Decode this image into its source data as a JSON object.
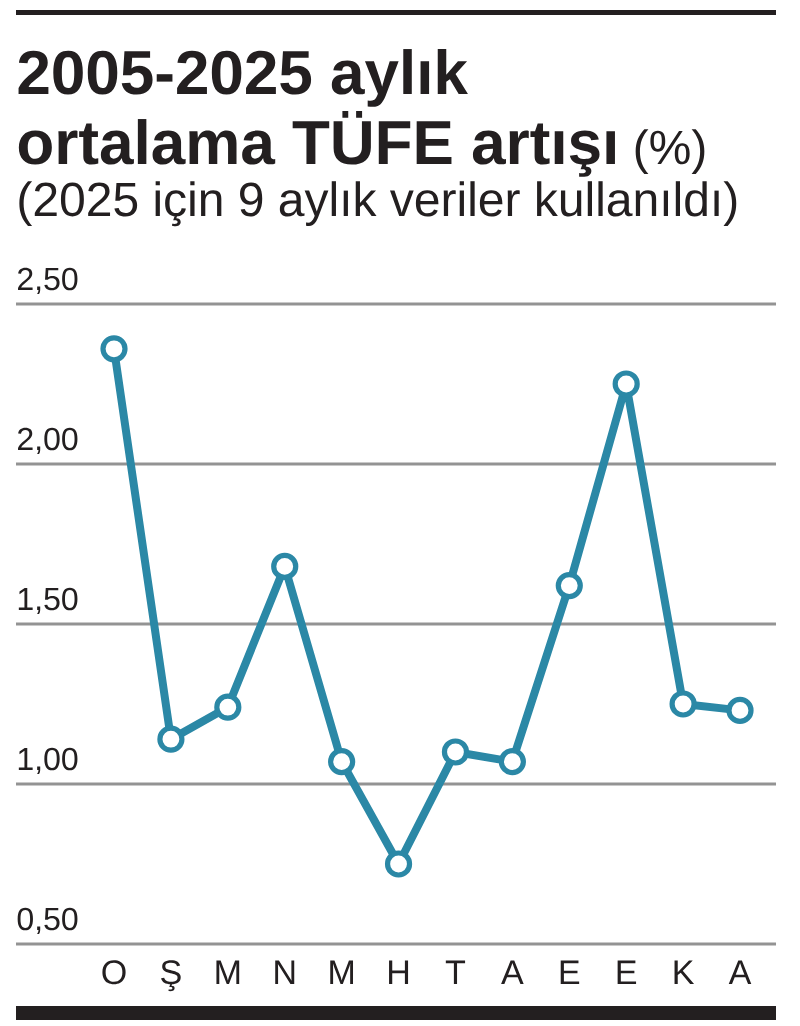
{
  "chart_data": {
    "type": "line",
    "title": "**2005-2025 aylık ortalama TÜFE artışı** (%)",
    "subtitle": "(2025 için 9 aylık veriler kullanıldı)",
    "categories": [
      "O",
      "Ş",
      "M",
      "N",
      "M",
      "H",
      "T",
      "A",
      "E",
      "E",
      "K",
      "A"
    ],
    "series": [
      {
        "color": "#2b88a6",
        "values": [
          2.36,
          1.14,
          1.24,
          1.68,
          1.07,
          0.75,
          1.1,
          1.07,
          1.62,
          2.25,
          1.25,
          1.23
        ]
      }
    ],
    "ylim": [
      0.5,
      2.5
    ],
    "yticks": [
      {
        "value": 0.5,
        "label": "0,50"
      },
      {
        "value": 1.0,
        "label": "1,00"
      },
      {
        "value": 1.5,
        "label": "1,50"
      },
      {
        "value": 2.0,
        "label": "2,00"
      },
      {
        "value": 2.5,
        "label": "2,50"
      }
    ],
    "grid": "y",
    "marker": "circle",
    "line_style": "solid"
  }
}
